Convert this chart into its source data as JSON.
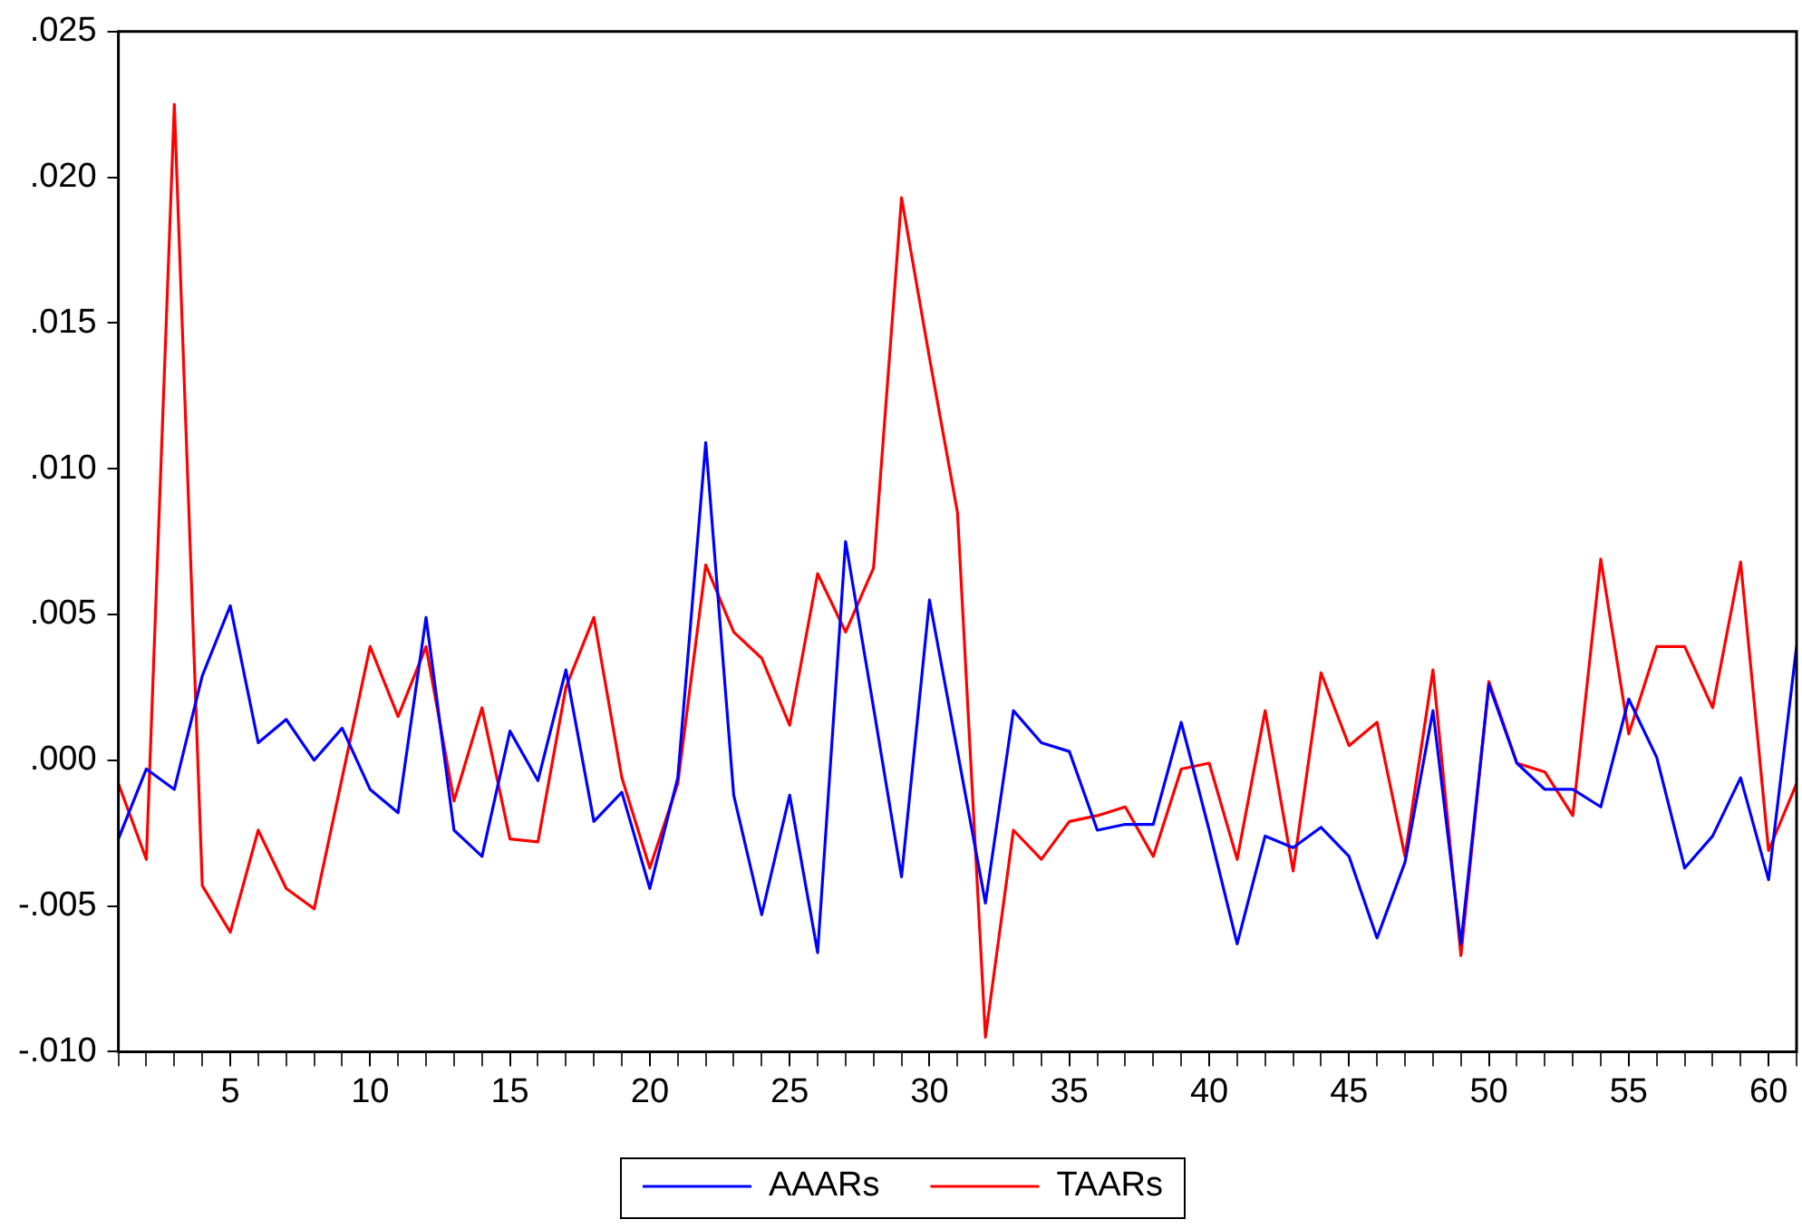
{
  "chart_data": {
    "type": "line",
    "x": [
      1,
      2,
      3,
      4,
      5,
      6,
      7,
      8,
      9,
      10,
      11,
      12,
      13,
      14,
      15,
      16,
      17,
      18,
      19,
      20,
      21,
      22,
      23,
      24,
      25,
      26,
      27,
      28,
      29,
      30,
      31,
      32,
      33,
      34,
      35,
      36,
      37,
      38,
      39,
      40,
      41,
      42,
      43,
      44,
      45,
      46,
      47,
      48,
      49,
      50,
      51,
      52,
      53,
      54,
      55,
      56,
      57,
      58,
      59,
      60,
      61
    ],
    "series": [
      {
        "name": "AAARs",
        "color": "#0000ff",
        "values": [
          -0.0027,
          -0.0003,
          -0.001,
          0.0029,
          0.0053,
          0.0006,
          0.0014,
          0.0,
          0.0011,
          -0.001,
          -0.0018,
          0.0049,
          -0.0024,
          -0.0033,
          0.001,
          -0.0007,
          0.0031,
          -0.0021,
          -0.0011,
          -0.0044,
          -0.0006,
          0.0109,
          -0.0012,
          -0.0053,
          -0.0012,
          -0.0066,
          0.0075,
          0.0018,
          -0.004,
          0.0055,
          0.0003,
          -0.0049,
          0.0017,
          0.0006,
          0.0003,
          -0.0024,
          -0.0022,
          -0.0022,
          0.0013,
          -0.0024,
          -0.0063,
          -0.0026,
          -0.003,
          -0.0023,
          -0.0033,
          -0.0061,
          -0.0035,
          0.0017,
          -0.0063,
          0.0026,
          -0.0001,
          -0.001,
          -0.001,
          -0.0016,
          0.0021,
          0.0001,
          -0.0037,
          -0.0026,
          -0.0006,
          -0.0041,
          0.0039
        ]
      },
      {
        "name": "TAARs",
        "color": "#ff0000",
        "values": [
          -0.0008,
          -0.0034,
          0.0225,
          -0.0043,
          -0.0059,
          -0.0024,
          -0.0044,
          -0.0051,
          -0.0006,
          0.0039,
          0.0015,
          0.0039,
          -0.0014,
          0.0018,
          -0.0027,
          -0.0028,
          0.0025,
          0.0049,
          -0.0006,
          -0.0037,
          -0.0008,
          0.0067,
          0.0044,
          0.0035,
          0.0012,
          0.0064,
          0.0044,
          0.0066,
          0.0193,
          0.0138,
          0.0085,
          -0.0095,
          -0.0024,
          -0.0034,
          -0.0021,
          -0.0019,
          -0.0016,
          -0.0033,
          -0.0003,
          -0.0001,
          -0.0034,
          0.0017,
          -0.0038,
          0.003,
          0.0005,
          0.0013,
          -0.0033,
          0.0031,
          -0.0067,
          0.0027,
          -0.0001,
          -0.0004,
          -0.0019,
          0.0069,
          0.0009,
          0.0039,
          0.0039,
          0.0018,
          0.0068,
          -0.0031,
          -0.0008
        ]
      }
    ],
    "xlim": [
      1,
      61
    ],
    "xticks": [
      {
        "value": 1,
        "label": null
      },
      {
        "value": 2,
        "label": null
      },
      {
        "value": 3,
        "label": null
      },
      {
        "value": 4,
        "label": null
      },
      5,
      {
        "value": 6,
        "label": null
      },
      {
        "value": 7,
        "label": null
      },
      {
        "value": 8,
        "label": null
      },
      {
        "value": 9,
        "label": null
      },
      10,
      {
        "value": 11,
        "label": null
      },
      {
        "value": 12,
        "label": null
      },
      {
        "value": 13,
        "label": null
      },
      {
        "value": 14,
        "label": null
      },
      15,
      {
        "value": 16,
        "label": null
      },
      {
        "value": 17,
        "label": null
      },
      {
        "value": 18,
        "label": null
      },
      {
        "value": 19,
        "label": null
      },
      20,
      {
        "value": 21,
        "label": null
      },
      {
        "value": 22,
        "label": null
      },
      {
        "value": 23,
        "label": null
      },
      {
        "value": 24,
        "label": null
      },
      25,
      {
        "value": 26,
        "label": null
      },
      {
        "value": 27,
        "label": null
      },
      {
        "value": 28,
        "label": null
      },
      {
        "value": 29,
        "label": null
      },
      30,
      {
        "value": 31,
        "label": null
      },
      {
        "value": 32,
        "label": null
      },
      {
        "value": 33,
        "label": null
      },
      {
        "value": 34,
        "label": null
      },
      35,
      {
        "value": 36,
        "label": null
      },
      {
        "value": 37,
        "label": null
      },
      {
        "value": 38,
        "label": null
      },
      {
        "value": 39,
        "label": null
      },
      40,
      {
        "value": 41,
        "label": null
      },
      {
        "value": 42,
        "label": null
      },
      {
        "value": 43,
        "label": null
      },
      {
        "value": 44,
        "label": null
      },
      45,
      {
        "value": 46,
        "label": null
      },
      {
        "value": 47,
        "label": null
      },
      {
        "value": 48,
        "label": null
      },
      {
        "value": 49,
        "label": null
      },
      50,
      {
        "value": 51,
        "label": null
      },
      {
        "value": 52,
        "label": null
      },
      {
        "value": 53,
        "label": null
      },
      {
        "value": 54,
        "label": null
      },
      55,
      {
        "value": 56,
        "label": null
      },
      {
        "value": 57,
        "label": null
      },
      {
        "value": 58,
        "label": null
      },
      {
        "value": 59,
        "label": null
      },
      60,
      {
        "value": 61,
        "label": null
      }
    ],
    "ylim": [
      -0.01,
      0.025
    ],
    "yticks": [
      {
        "value": -0.01,
        "label": "-.010"
      },
      {
        "value": -0.005,
        "label": "-.005"
      },
      {
        "value": 0,
        "label": ".000"
      },
      {
        "value": 0.005,
        "label": ".005"
      },
      {
        "value": 0.01,
        "label": ".010"
      },
      {
        "value": 0.015,
        "label": ".015"
      },
      {
        "value": 0.02,
        "label": ".020"
      },
      {
        "value": 0.025,
        "label": ".025"
      }
    ],
    "grid": false,
    "legend": "bottom",
    "marker": "none",
    "line_style": "solid"
  }
}
